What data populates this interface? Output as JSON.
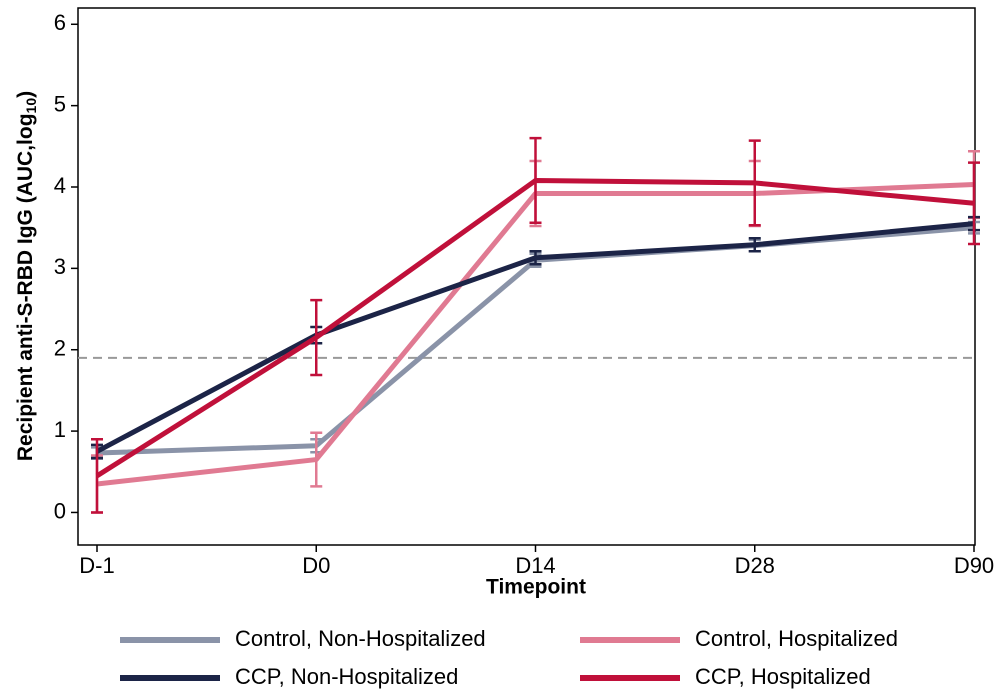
{
  "chart_data": {
    "type": "line",
    "xlabel": "Timepoint",
    "ylabel": "Recipient anti-S-RBD IgG (AUC,log",
    "ylabel_sub": "10",
    "ylabel_end": ")",
    "categories": [
      "D-1",
      "D0",
      "D14",
      "D28",
      "D90"
    ],
    "ylim": [
      -0.4,
      6.2
    ],
    "yticks": [
      0,
      1,
      2,
      3,
      4,
      5,
      6
    ],
    "hline": 1.9,
    "grid": false,
    "series": [
      {
        "name": "Control, Non-Hospitalized",
        "color": "#8a93a8",
        "values": [
          0.73,
          0.82,
          3.1,
          3.28,
          3.5
        ],
        "errors": [
          0.07,
          0.08,
          0.08,
          0.07,
          0.07
        ]
      },
      {
        "name": "Control, Hospitalized",
        "color": "#e07a92",
        "values": [
          0.35,
          0.65,
          3.92,
          3.92,
          4.03
        ],
        "errors": [
          0.35,
          0.33,
          0.4,
          0.4,
          0.41
        ]
      },
      {
        "name": "CCP, Non-Hospitalized",
        "color": "#1c2447",
        "values": [
          0.75,
          2.18,
          3.13,
          3.29,
          3.55
        ],
        "errors": [
          0.08,
          0.1,
          0.08,
          0.08,
          0.08
        ]
      },
      {
        "name": "CCP, Hospitalized",
        "color": "#c0103a",
        "values": [
          0.45,
          2.15,
          4.08,
          4.05,
          3.8
        ],
        "errors": [
          0.45,
          0.46,
          0.52,
          0.52,
          0.5
        ]
      }
    ]
  }
}
